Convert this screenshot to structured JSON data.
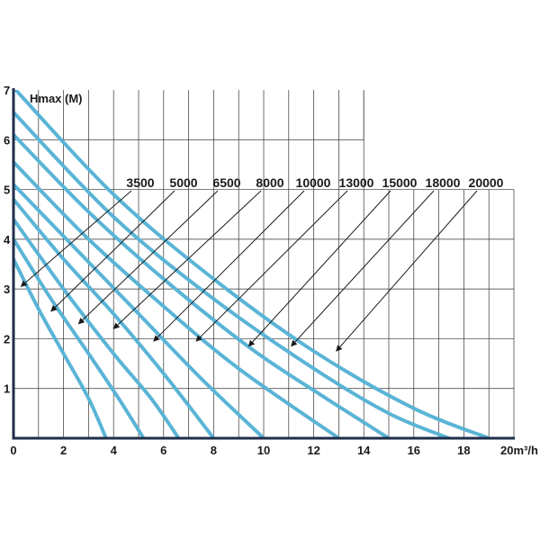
{
  "chart_data": {
    "type": "line",
    "title": "",
    "ylabel": "Hmax (M)",
    "xlabel": "20m³/h",
    "xlim": [
      0,
      20
    ],
    "ylim": [
      0,
      7
    ],
    "x_ticks": [
      "0",
      "2",
      "4",
      "6",
      "8",
      "10",
      "12",
      "14",
      "16",
      "18"
    ],
    "y_ticks": [
      "1",
      "2",
      "3",
      "4",
      "5",
      "6",
      "7"
    ],
    "grid": true,
    "line_color": "#5ab4d6",
    "series": [
      {
        "name": "3500",
        "values": [
          [
            0,
            3.6
          ],
          [
            1,
            2.6
          ],
          [
            2,
            1.7
          ],
          [
            3,
            0.8
          ],
          [
            3.7,
            0
          ]
        ]
      },
      {
        "name": "5000",
        "values": [
          [
            0,
            4.0
          ],
          [
            1.5,
            2.8
          ],
          [
            3,
            1.7
          ],
          [
            4.2,
            0.8
          ],
          [
            5.2,
            0
          ]
        ]
      },
      {
        "name": "6500",
        "values": [
          [
            0,
            4.4
          ],
          [
            2,
            3.0
          ],
          [
            4,
            1.7
          ],
          [
            5.5,
            0.8
          ],
          [
            6.6,
            0
          ]
        ]
      },
      {
        "name": "8000",
        "values": [
          [
            0,
            4.8
          ],
          [
            2,
            3.6
          ],
          [
            4,
            2.5
          ],
          [
            6,
            1.3
          ],
          [
            8,
            0
          ]
        ]
      },
      {
        "name": "10000",
        "values": [
          [
            0,
            5.1
          ],
          [
            2.5,
            3.8
          ],
          [
            5,
            2.5
          ],
          [
            7.5,
            1.2
          ],
          [
            10,
            0
          ]
        ]
      },
      {
        "name": "13000",
        "values": [
          [
            0,
            5.55
          ],
          [
            3,
            4.0
          ],
          [
            6,
            2.65
          ],
          [
            9,
            1.4
          ],
          [
            13,
            0
          ]
        ]
      },
      {
        "name": "15000",
        "values": [
          [
            0,
            6.1
          ],
          [
            3,
            4.55
          ],
          [
            6,
            3.2
          ],
          [
            9.5,
            1.8
          ],
          [
            12.5,
            0.8
          ],
          [
            15,
            0
          ]
        ]
      },
      {
        "name": "18000",
        "values": [
          [
            0,
            6.55
          ],
          [
            4,
            4.45
          ],
          [
            8,
            2.8
          ],
          [
            12,
            1.4
          ],
          [
            15,
            0.5
          ],
          [
            17.4,
            0
          ]
        ]
      },
      {
        "name": "20000",
        "values": [
          [
            0,
            7.05
          ],
          [
            4,
            4.9
          ],
          [
            8,
            3.2
          ],
          [
            12,
            1.75
          ],
          [
            16,
            0.6
          ],
          [
            19,
            0
          ]
        ]
      }
    ],
    "label_order": [
      "3500",
      "5000",
      "6500",
      "8000",
      "10000",
      "13000",
      "15000",
      "18000",
      "20000"
    ],
    "annotations": [
      {
        "series": "3500",
        "at": [
          0.3,
          3.05
        ]
      },
      {
        "series": "5000",
        "at": [
          1.5,
          2.55
        ]
      },
      {
        "series": "6500",
        "at": [
          2.6,
          2.3
        ]
      },
      {
        "series": "8000",
        "at": [
          4.0,
          2.2
        ]
      },
      {
        "series": "10000",
        "at": [
          5.6,
          1.95
        ]
      },
      {
        "series": "13000",
        "at": [
          7.3,
          1.95
        ]
      },
      {
        "series": "15000",
        "at": [
          9.4,
          1.85
        ]
      },
      {
        "series": "18000",
        "at": [
          11.1,
          1.85
        ]
      },
      {
        "series": "20000",
        "at": [
          12.9,
          1.75
        ]
      }
    ]
  }
}
